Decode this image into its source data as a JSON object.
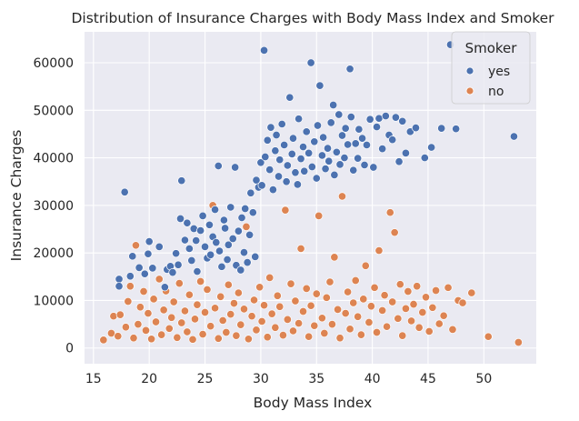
{
  "chart_data": {
    "type": "scatter",
    "title": "Distribution of Insurance Charges with Body Mass Index and Smoker",
    "xlabel": "Body Mass Index",
    "ylabel": "Insurance Charges",
    "xlim": [
      14.2,
      54.7
    ],
    "ylim": [
      -3300,
      66500
    ],
    "xticks": [
      "15",
      "20",
      "25",
      "30",
      "35",
      "40",
      "45",
      "50"
    ],
    "yticks": [
      "0",
      "10000",
      "20000",
      "30000",
      "40000",
      "50000",
      "60000"
    ],
    "grid": true,
    "background": "#eaeaf2",
    "legend": {
      "title": "Smoker",
      "placement": "top-right",
      "entries": [
        "yes",
        "no"
      ]
    },
    "series": [
      {
        "name": "yes",
        "color": "#4c72b0",
        "points": [
          [
            17.3,
            14500
          ],
          [
            17.3,
            13000
          ],
          [
            17.8,
            32800
          ],
          [
            18.3,
            15100
          ],
          [
            18.5,
            19300
          ],
          [
            19.1,
            16900
          ],
          [
            19.6,
            15600
          ],
          [
            19.9,
            19800
          ],
          [
            20.0,
            22400
          ],
          [
            20.3,
            16800
          ],
          [
            20.9,
            21300
          ],
          [
            21.4,
            12800
          ],
          [
            21.6,
            16500
          ],
          [
            21.9,
            17200
          ],
          [
            22.1,
            15900
          ],
          [
            22.4,
            19900
          ],
          [
            22.6,
            17500
          ],
          [
            22.8,
            27200
          ],
          [
            22.9,
            35200
          ],
          [
            23.2,
            22700
          ],
          [
            23.4,
            26300
          ],
          [
            23.6,
            20900
          ],
          [
            23.8,
            18400
          ],
          [
            24.0,
            25100
          ],
          [
            24.2,
            22600
          ],
          [
            24.3,
            16100
          ],
          [
            24.6,
            24700
          ],
          [
            24.8,
            27800
          ],
          [
            25.0,
            21300
          ],
          [
            25.2,
            18900
          ],
          [
            25.4,
            25900
          ],
          [
            25.5,
            19600
          ],
          [
            25.7,
            23400
          ],
          [
            25.9,
            29100
          ],
          [
            26.0,
            22200
          ],
          [
            26.2,
            38300
          ],
          [
            26.3,
            20400
          ],
          [
            26.5,
            17100
          ],
          [
            26.7,
            26900
          ],
          [
            26.8,
            25200
          ],
          [
            27.0,
            18600
          ],
          [
            27.1,
            21700
          ],
          [
            27.3,
            29600
          ],
          [
            27.5,
            23000
          ],
          [
            27.7,
            38000
          ],
          [
            27.8,
            17400
          ],
          [
            28.0,
            24600
          ],
          [
            28.2,
            16400
          ],
          [
            28.3,
            27400
          ],
          [
            28.5,
            20100
          ],
          [
            28.6,
            29300
          ],
          [
            28.8,
            18000
          ],
          [
            29.0,
            23800
          ],
          [
            29.1,
            32600
          ],
          [
            29.3,
            28500
          ],
          [
            29.5,
            19200
          ],
          [
            29.6,
            35300
          ],
          [
            29.8,
            33800
          ],
          [
            30.0,
            39000
          ],
          [
            30.1,
            34200
          ],
          [
            30.3,
            62600
          ],
          [
            30.4,
            40200
          ],
          [
            30.6,
            43700
          ],
          [
            30.8,
            37500
          ],
          [
            30.9,
            46400
          ],
          [
            31.1,
            33300
          ],
          [
            31.3,
            41500
          ],
          [
            31.4,
            44800
          ],
          [
            31.6,
            36100
          ],
          [
            31.7,
            39600
          ],
          [
            31.9,
            47100
          ],
          [
            32.1,
            42700
          ],
          [
            32.3,
            35000
          ],
          [
            32.4,
            38400
          ],
          [
            32.6,
            52700
          ],
          [
            32.8,
            40800
          ],
          [
            32.9,
            44100
          ],
          [
            33.1,
            36900
          ],
          [
            33.3,
            34400
          ],
          [
            33.4,
            48200
          ],
          [
            33.6,
            39800
          ],
          [
            33.8,
            42300
          ],
          [
            33.9,
            37200
          ],
          [
            34.1,
            45500
          ],
          [
            34.3,
            41000
          ],
          [
            34.5,
            60000
          ],
          [
            34.6,
            38100
          ],
          [
            34.8,
            43400
          ],
          [
            35.0,
            35700
          ],
          [
            35.1,
            46800
          ],
          [
            35.3,
            55200
          ],
          [
            35.5,
            40500
          ],
          [
            35.6,
            44300
          ],
          [
            35.8,
            37700
          ],
          [
            36.0,
            42000
          ],
          [
            36.1,
            39300
          ],
          [
            36.3,
            47400
          ],
          [
            36.5,
            51100
          ],
          [
            36.6,
            36400
          ],
          [
            36.8,
            41200
          ],
          [
            37.0,
            49100
          ],
          [
            37.1,
            38600
          ],
          [
            37.3,
            44700
          ],
          [
            37.5,
            40000
          ],
          [
            37.6,
            46200
          ],
          [
            37.8,
            42800
          ],
          [
            38.0,
            58700
          ],
          [
            38.1,
            48600
          ],
          [
            38.3,
            37400
          ],
          [
            38.5,
            43000
          ],
          [
            38.7,
            39900
          ],
          [
            38.8,
            46000
          ],
          [
            39.1,
            44100
          ],
          [
            39.3,
            38500
          ],
          [
            39.5,
            42700
          ],
          [
            39.8,
            48100
          ],
          [
            40.1,
            38000
          ],
          [
            40.4,
            46500
          ],
          [
            40.6,
            48300
          ],
          [
            40.9,
            41900
          ],
          [
            41.2,
            48800
          ],
          [
            41.5,
            44800
          ],
          [
            41.8,
            43800
          ],
          [
            42.1,
            48500
          ],
          [
            42.4,
            39200
          ],
          [
            42.7,
            47700
          ],
          [
            43.0,
            41000
          ],
          [
            43.4,
            45500
          ],
          [
            43.9,
            46300
          ],
          [
            44.7,
            40000
          ],
          [
            45.3,
            42200
          ],
          [
            46.2,
            46200
          ],
          [
            47.0,
            63800
          ],
          [
            47.5,
            46100
          ],
          [
            52.7,
            44500
          ]
        ]
      },
      {
        "name": "no",
        "color": "#dd8452",
        "points": [
          [
            15.9,
            1700
          ],
          [
            16.6,
            3100
          ],
          [
            16.8,
            6700
          ],
          [
            17.2,
            2500
          ],
          [
            17.4,
            7000
          ],
          [
            17.9,
            4400
          ],
          [
            18.1,
            9800
          ],
          [
            18.3,
            13000
          ],
          [
            18.6,
            2100
          ],
          [
            18.8,
            21600
          ],
          [
            19.0,
            5000
          ],
          [
            19.2,
            8600
          ],
          [
            19.5,
            11900
          ],
          [
            19.7,
            3700
          ],
          [
            19.9,
            7300
          ],
          [
            20.2,
            1900
          ],
          [
            20.4,
            10300
          ],
          [
            20.6,
            5500
          ],
          [
            20.9,
            14500
          ],
          [
            21.1,
            2800
          ],
          [
            21.3,
            8000
          ],
          [
            21.5,
            12000
          ],
          [
            21.8,
            4100
          ],
          [
            22.0,
            6400
          ],
          [
            22.2,
            9700
          ],
          [
            22.5,
            2200
          ],
          [
            22.7,
            13600
          ],
          [
            22.9,
            5300
          ],
          [
            23.2,
            7800
          ],
          [
            23.4,
            3400
          ],
          [
            23.6,
            11200
          ],
          [
            23.9,
            1800
          ],
          [
            24.1,
            6100
          ],
          [
            24.3,
            9100
          ],
          [
            24.6,
            14000
          ],
          [
            24.8,
            2900
          ],
          [
            25.0,
            7500
          ],
          [
            25.2,
            12300
          ],
          [
            25.5,
            4600
          ],
          [
            25.7,
            30000
          ],
          [
            25.9,
            8400
          ],
          [
            26.2,
            2000
          ],
          [
            26.4,
            10800
          ],
          [
            26.6,
            5800
          ],
          [
            26.9,
            3300
          ],
          [
            27.1,
            13300
          ],
          [
            27.3,
            7100
          ],
          [
            27.6,
            9400
          ],
          [
            27.8,
            2600
          ],
          [
            28.0,
            11600
          ],
          [
            28.2,
            4900
          ],
          [
            28.5,
            8200
          ],
          [
            28.7,
            25500
          ],
          [
            28.9,
            1900
          ],
          [
            29.2,
            6700
          ],
          [
            29.4,
            10100
          ],
          [
            29.6,
            3800
          ],
          [
            29.9,
            12800
          ],
          [
            30.1,
            5600
          ],
          [
            30.3,
            9000
          ],
          [
            30.6,
            2300
          ],
          [
            30.8,
            14800
          ],
          [
            31.0,
            7200
          ],
          [
            31.3,
            4300
          ],
          [
            31.5,
            11000
          ],
          [
            31.7,
            8700
          ],
          [
            32.0,
            2700
          ],
          [
            32.2,
            29000
          ],
          [
            32.4,
            6000
          ],
          [
            32.7,
            13500
          ],
          [
            32.9,
            3600
          ],
          [
            33.1,
            9900
          ],
          [
            33.4,
            5200
          ],
          [
            33.6,
            20900
          ],
          [
            33.8,
            7700
          ],
          [
            34.1,
            12500
          ],
          [
            34.3,
            2400
          ],
          [
            34.5,
            8900
          ],
          [
            34.8,
            4700
          ],
          [
            35.0,
            11400
          ],
          [
            35.2,
            27800
          ],
          [
            35.5,
            6300
          ],
          [
            35.7,
            3100
          ],
          [
            35.9,
            10600
          ],
          [
            36.2,
            13900
          ],
          [
            36.4,
            5000
          ],
          [
            36.6,
            19100
          ],
          [
            36.9,
            8100
          ],
          [
            37.1,
            2100
          ],
          [
            37.3,
            31900
          ],
          [
            37.6,
            7300
          ],
          [
            37.8,
            11800
          ],
          [
            38.0,
            4000
          ],
          [
            38.3,
            9500
          ],
          [
            38.5,
            14200
          ],
          [
            38.7,
            6600
          ],
          [
            39.0,
            2800
          ],
          [
            39.2,
            10300
          ],
          [
            39.4,
            17300
          ],
          [
            39.7,
            5400
          ],
          [
            39.9,
            8800
          ],
          [
            40.2,
            12700
          ],
          [
            40.4,
            3300
          ],
          [
            40.6,
            20500
          ],
          [
            40.9,
            7900
          ],
          [
            41.1,
            11100
          ],
          [
            41.3,
            4500
          ],
          [
            41.6,
            28500
          ],
          [
            41.8,
            9700
          ],
          [
            42.0,
            24300
          ],
          [
            42.3,
            6200
          ],
          [
            42.5,
            13400
          ],
          [
            42.7,
            2600
          ],
          [
            43.0,
            8300
          ],
          [
            43.2,
            11900
          ],
          [
            43.5,
            5700
          ],
          [
            43.7,
            9200
          ],
          [
            44.0,
            13000
          ],
          [
            44.2,
            4300
          ],
          [
            44.5,
            7500
          ],
          [
            44.8,
            10700
          ],
          [
            45.1,
            3500
          ],
          [
            45.4,
            8500
          ],
          [
            45.7,
            12100
          ],
          [
            46.0,
            5100
          ],
          [
            46.4,
            6800
          ],
          [
            46.8,
            12700
          ],
          [
            47.2,
            3900
          ],
          [
            47.7,
            10000
          ],
          [
            48.1,
            9500
          ],
          [
            48.9,
            11600
          ],
          [
            50.4,
            2400
          ],
          [
            53.1,
            1200
          ]
        ]
      }
    ]
  }
}
